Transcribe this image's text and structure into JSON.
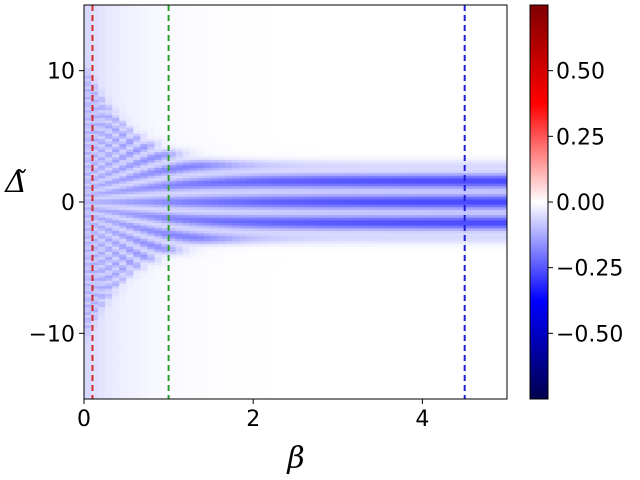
{
  "chart_data": {
    "type": "heatmap",
    "title": "",
    "xlabel": "β",
    "ylabel": "Δ̃",
    "xlim": [
      0,
      5
    ],
    "ylim": [
      -15,
      15
    ],
    "x_ticks": [
      0,
      2,
      4
    ],
    "x_tick_labels": [
      "0",
      "2",
      "4"
    ],
    "y_ticks": [
      -10,
      0,
      10
    ],
    "y_tick_labels": [
      "−10",
      "0",
      "10"
    ],
    "colormap": "seismic",
    "color_range": [
      -0.75,
      0.75
    ],
    "colorbar": {
      "ticks": [
        0.5,
        0.25,
        0.0,
        -0.25,
        -0.5
      ],
      "tick_labels": [
        "0.50",
        "0.25",
        "0.00",
        "−0.25",
        "−0.50"
      ],
      "placement": "right"
    },
    "field_description": {
      "band_half_width_large_beta": 2.6,
      "band_centers_large_beta": [
        -1.6,
        0,
        1.6
      ],
      "band_value_large_beta": -0.28
    },
    "vertical_lines": [
      {
        "x": 0.1,
        "color": "#d62728",
        "style": "dashed"
      },
      {
        "x": 1.0,
        "color": "#2ca02c",
        "style": "dashed"
      },
      {
        "x": 4.5,
        "color": "#1f1fd6",
        "style": "dashed"
      }
    ],
    "grid": false
  }
}
